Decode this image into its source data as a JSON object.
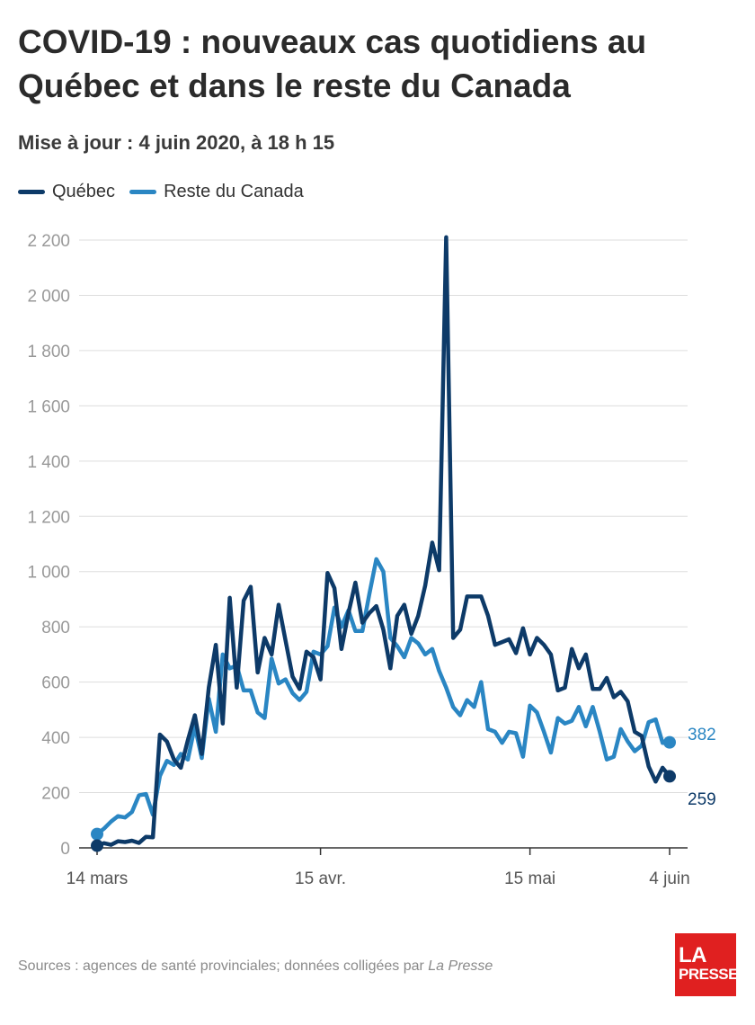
{
  "title": "COVID-19 : nouveaux cas quotidiens au Québec et dans le reste du Canada",
  "subtitle": "Mise à jour : 4 juin 2020, à 18 h 15",
  "source_prefix": "Sources : agences de santé provinciales; données colligées par ",
  "source_publication": "La Presse",
  "logo": {
    "line1": "LA",
    "line2": "PRESSE"
  },
  "colors": {
    "quebec": "#0d3a68",
    "rest_of_canada": "#2a86c3",
    "grid": "#dddddd",
    "axis": "#333333",
    "tick_text": "#999999",
    "logo_bg": "#e02020"
  },
  "chart_data": {
    "type": "line",
    "x_start": "2020-03-14",
    "x_end": "2020-06-04",
    "x_ticks": [
      {
        "date": "2020-03-14",
        "label": "14 mars"
      },
      {
        "date": "2020-04-15",
        "label": "15 avr."
      },
      {
        "date": "2020-05-15",
        "label": "15 mai"
      },
      {
        "date": "2020-06-04",
        "label": "4 juin"
      }
    ],
    "y_ticks": [
      {
        "value": 0,
        "label": "0"
      },
      {
        "value": 200,
        "label": "200"
      },
      {
        "value": 400,
        "label": "400"
      },
      {
        "value": 600,
        "label": "600"
      },
      {
        "value": 800,
        "label": "800"
      },
      {
        "value": 1000,
        "label": "1 000"
      },
      {
        "value": 1200,
        "label": "1 200"
      },
      {
        "value": 1400,
        "label": "1 400"
      },
      {
        "value": 1600,
        "label": "1 600"
      },
      {
        "value": 1800,
        "label": "1 800"
      },
      {
        "value": 2000,
        "label": "2 000"
      },
      {
        "value": 2200,
        "label": "2 200"
      }
    ],
    "ylim": [
      0,
      2200
    ],
    "grid": true,
    "legend_position": "top-left",
    "series": [
      {
        "name": "Québec",
        "end_label": "259",
        "values": [
          8,
          17,
          11,
          24,
          21,
          26,
          18,
          40,
          38,
          410,
          385,
          320,
          290,
          390,
          480,
          340,
          580,
          735,
          450,
          905,
          580,
          895,
          945,
          635,
          760,
          700,
          880,
          750,
          620,
          575,
          710,
          690,
          610,
          995,
          940,
          720,
          850,
          960,
          815,
          850,
          875,
          790,
          650,
          840,
          880,
          775,
          840,
          950,
          1105,
          1005,
          2210,
          760,
          790,
          910,
          910,
          910,
          840,
          735,
          745,
          755,
          705,
          795,
          700,
          760,
          735,
          700,
          570,
          580,
          720,
          650,
          700,
          575,
          575,
          615,
          545,
          565,
          530,
          420,
          405,
          295,
          240,
          290,
          259
        ]
      },
      {
        "name": "Reste du Canada",
        "end_label": "382",
        "values": [
          50,
          70,
          95,
          115,
          110,
          130,
          190,
          195,
          120,
          260,
          315,
          300,
          340,
          320,
          440,
          325,
          540,
          420,
          700,
          650,
          660,
          570,
          570,
          490,
          470,
          685,
          595,
          610,
          560,
          535,
          565,
          710,
          700,
          730,
          870,
          800,
          860,
          785,
          785,
          920,
          1045,
          1000,
          760,
          730,
          690,
          760,
          740,
          700,
          720,
          640,
          580,
          510,
          480,
          535,
          510,
          600,
          430,
          420,
          380,
          420,
          415,
          330,
          515,
          490,
          420,
          345,
          470,
          450,
          460,
          510,
          440,
          510,
          420,
          320,
          330,
          430,
          385,
          350,
          370,
          455,
          465,
          380,
          382
        ]
      }
    ]
  }
}
